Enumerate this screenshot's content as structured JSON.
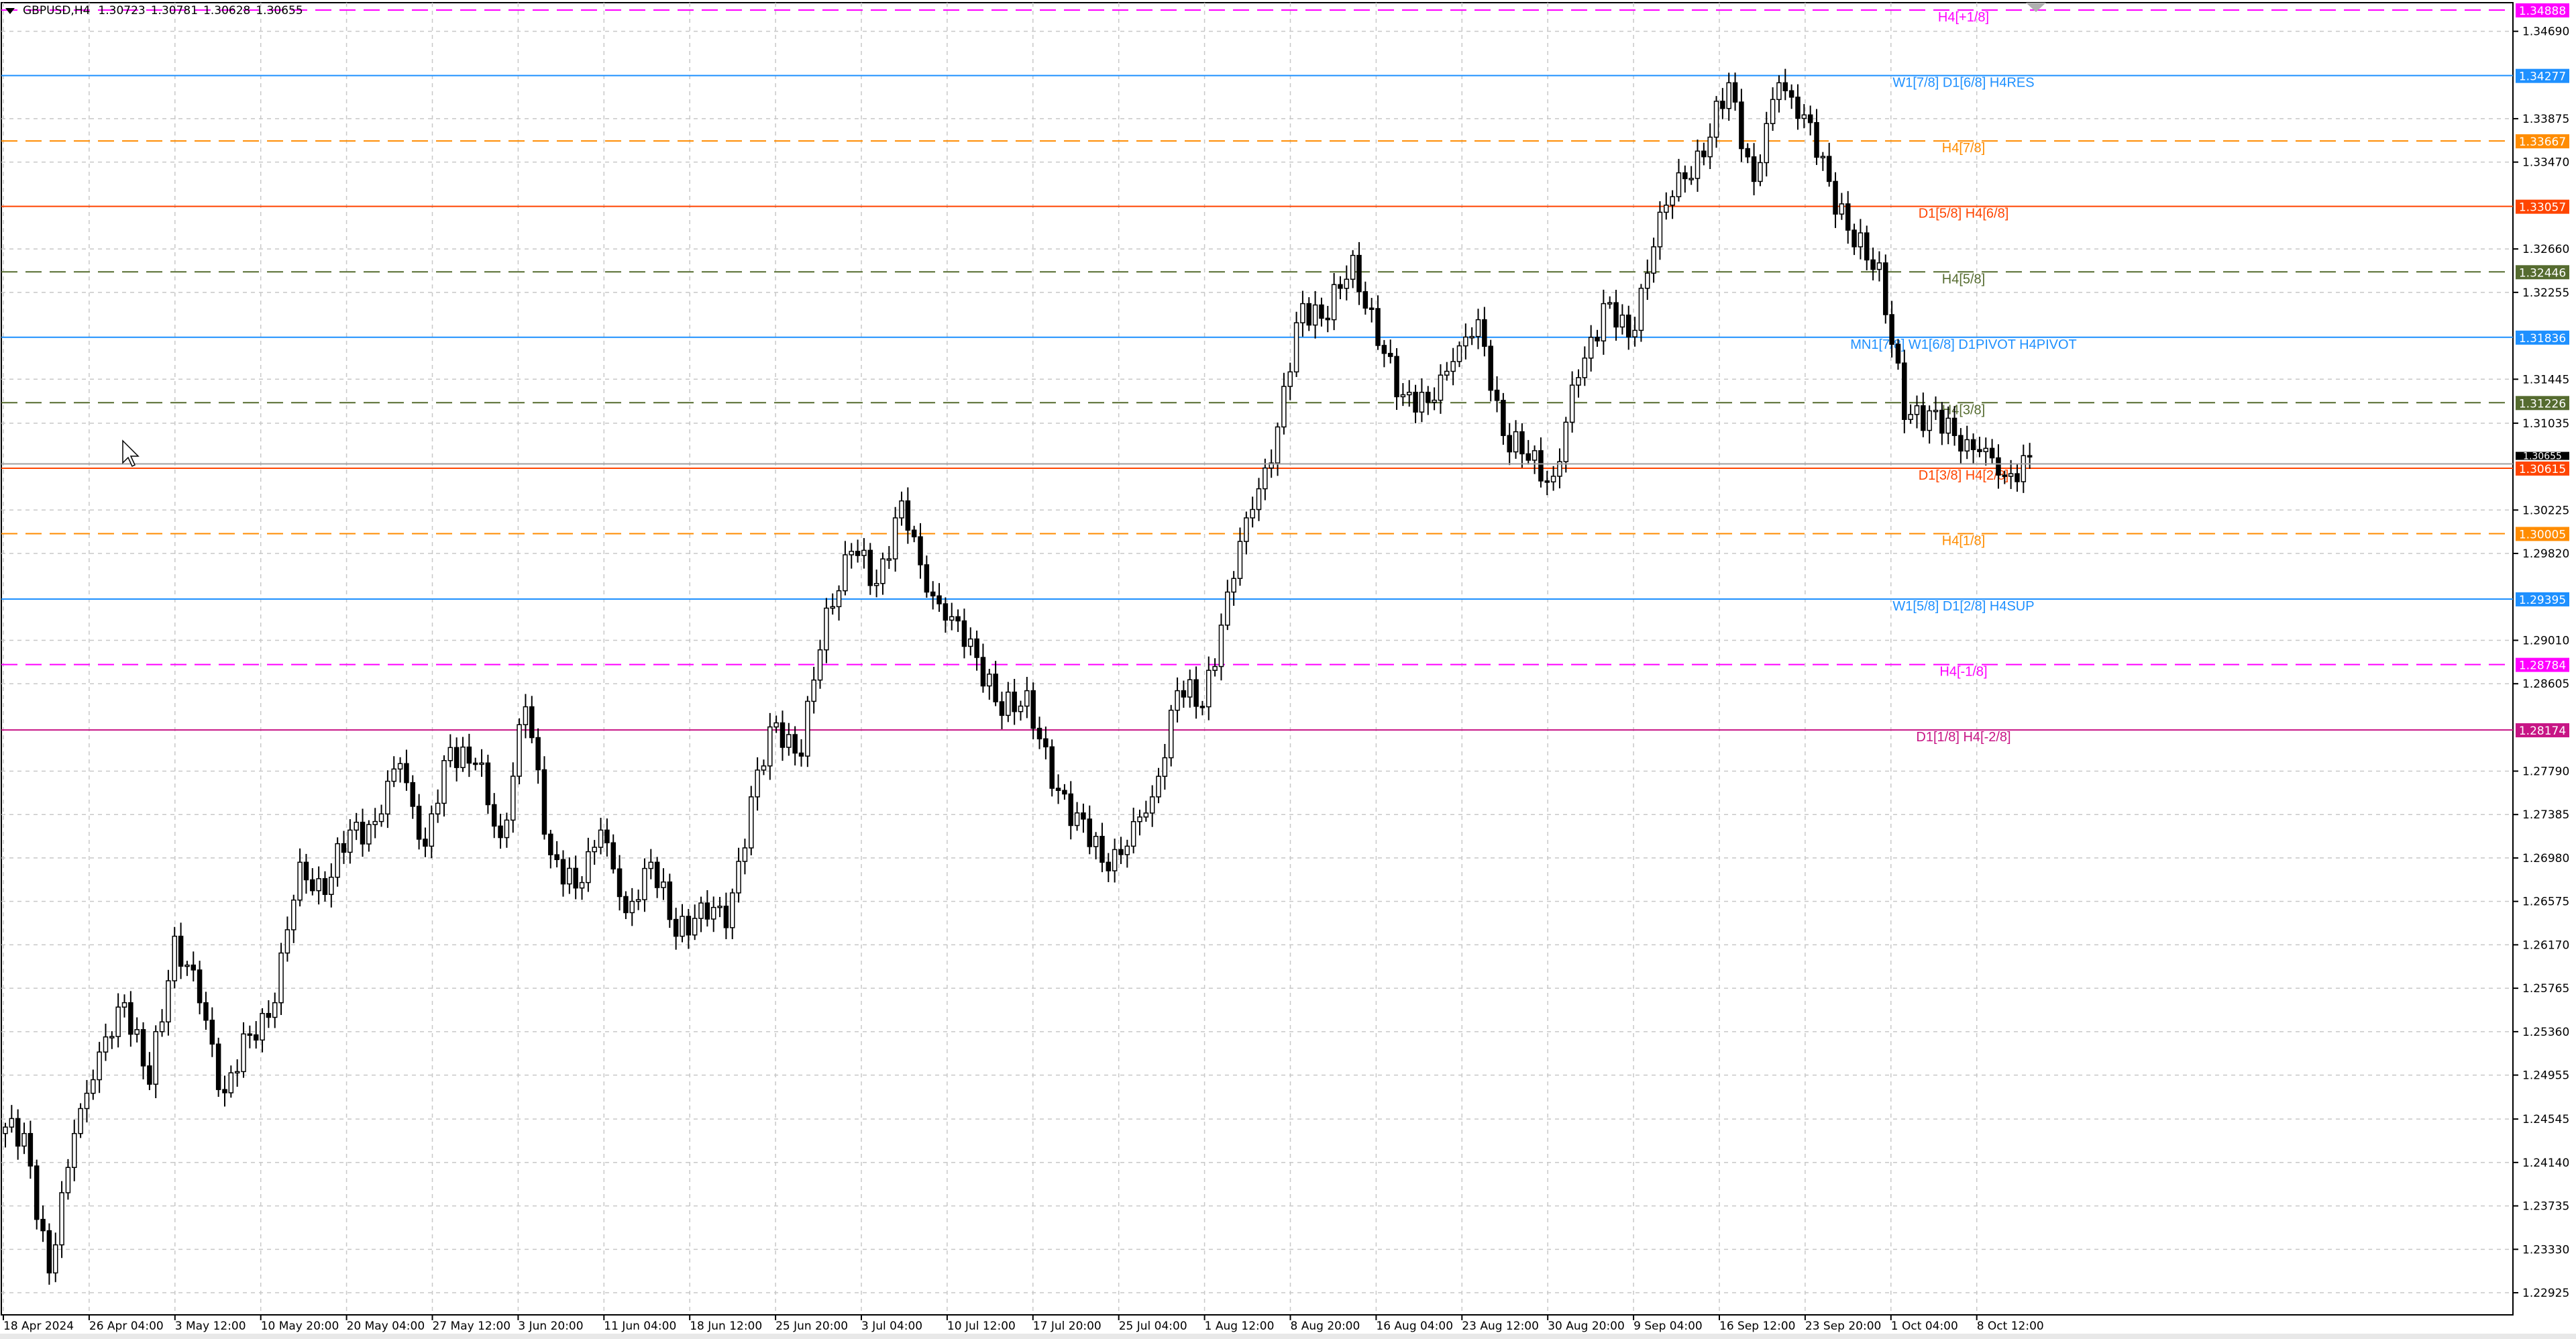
{
  "header": {
    "symbol": "GBPUSD,H4",
    "open": "1.30723",
    "high": "1.30781",
    "low": "1.30628",
    "close": "1.30655"
  },
  "chart_data": {
    "type": "candlestick",
    "symbol": "GBPUSD",
    "timeframe": "H4",
    "ylim": [
      1.228,
      1.3502
    ],
    "grid": true,
    "current_price": 1.30655,
    "current_price_label": "1.30655",
    "closes": [
      1.2441,
      1.2311,
      1.2441,
      1.2517,
      1.2563,
      1.2487,
      1.2625,
      1.2563,
      1.2479,
      1.2533,
      1.2563,
      1.2694,
      1.2664,
      1.2724,
      1.2732,
      1.2786,
      1.2709,
      1.2801,
      1.2786,
      1.2717,
      1.2839,
      1.2701,
      1.267,
      1.2724,
      1.2647,
      1.2694,
      1.2625,
      1.2656,
      1.2633,
      1.2755,
      1.2824,
      1.2793,
      1.2931,
      1.2984,
      1.2954,
      1.3031,
      1.2946,
      1.2923,
      1.2885,
      1.2831,
      1.2854,
      1.2763,
      1.274,
      1.2694,
      1.2709,
      1.2755,
      1.2854,
      1.2839,
      1.2946,
      1.3023,
      1.31,
      1.3215,
      1.32,
      1.326,
      1.3176,
      1.313,
      1.3123,
      1.3161,
      1.32,
      1.3092,
      1.3069,
      1.3054,
      1.3146,
      1.3215,
      1.3184,
      1.3268,
      1.3337,
      1.3352,
      1.3421,
      1.3329,
      1.3421,
      1.3391,
      1.3329,
      1.3268,
      1.3253,
      1.3107,
      1.3115,
      1.3092,
      1.3077,
      1.3054,
      1.3072
    ],
    "y_ticks": [
      "1.34690",
      "1.33875",
      "1.33470",
      "1.32660",
      "1.32255",
      "1.31445",
      "1.31035",
      "1.30225",
      "1.29820",
      "1.29010",
      "1.28605",
      "1.27790",
      "1.27385",
      "1.26980",
      "1.26575",
      "1.26170",
      "1.25765",
      "1.25360",
      "1.24955",
      "1.24545",
      "1.24140",
      "1.23735",
      "1.23330",
      "1.22925"
    ],
    "x_ticks": [
      "18 Apr 2024",
      "26 Apr 04:00",
      "3 May 12:00",
      "10 May 20:00",
      "20 May 04:00",
      "27 May 12:00",
      "3 Jun 20:00",
      "11 Jun 04:00",
      "18 Jun 12:00",
      "25 Jun 20:00",
      "3 Jul 04:00",
      "10 Jul 12:00",
      "17 Jul 20:00",
      "25 Jul 04:00",
      "1 Aug 12:00",
      "8 Aug 20:00",
      "16 Aug 04:00",
      "23 Aug 12:00",
      "30 Aug 20:00",
      "9 Sep 04:00",
      "16 Sep 12:00",
      "23 Sep 20:00",
      "1 Oct 04:00",
      "8 Oct 12:00"
    ],
    "levels": [
      {
        "price": 1.34888,
        "price_label": "1.34888",
        "label": "H4[+1/8]",
        "color": "#ff00ff",
        "style": "dashed"
      },
      {
        "price": 1.34277,
        "price_label": "1.34277",
        "label": "W1[7/8] D1[6/8] H4RES",
        "color": "#1e90ff",
        "style": "solid"
      },
      {
        "price": 1.33667,
        "price_label": "1.33667",
        "label": "H4[7/8]",
        "color": "#ff8c00",
        "style": "dashed"
      },
      {
        "price": 1.33057,
        "price_label": "1.33057",
        "label": "D1[5/8] H4[6/8]",
        "color": "#ff4500",
        "style": "solid"
      },
      {
        "price": 1.32446,
        "price_label": "1.32446",
        "label": "H4[5/8]",
        "color": "#556b2f",
        "style": "dashed"
      },
      {
        "price": 1.31836,
        "price_label": "1.31836",
        "label": "MN1[7/8] W1[6/8] D1PIVOT H4PIVOT",
        "color": "#1e90ff",
        "style": "solid"
      },
      {
        "price": 1.31226,
        "price_label": "1.31226",
        "label": "H4[3/8]",
        "color": "#556b2f",
        "style": "dashed"
      },
      {
        "price": 1.30615,
        "price_label": "1.30615",
        "label": "D1[3/8] H4[2/8]",
        "color": "#ff4500",
        "style": "solid"
      },
      {
        "price": 1.30005,
        "price_label": "1.30005",
        "label": "H4[1/8]",
        "color": "#ff8c00",
        "style": "dashed"
      },
      {
        "price": 1.29395,
        "price_label": "1.29395",
        "label": "W1[5/8] D1[2/8] H4SUP",
        "color": "#1e90ff",
        "style": "solid"
      },
      {
        "price": 1.28784,
        "price_label": "1.28784",
        "label": "H4[-1/8]",
        "color": "#ff00ff",
        "style": "dashed"
      },
      {
        "price": 1.28174,
        "price_label": "1.28174",
        "label": "D1[1/8] H4[-2/8]",
        "color": "#c71585",
        "style": "solid"
      }
    ]
  }
}
